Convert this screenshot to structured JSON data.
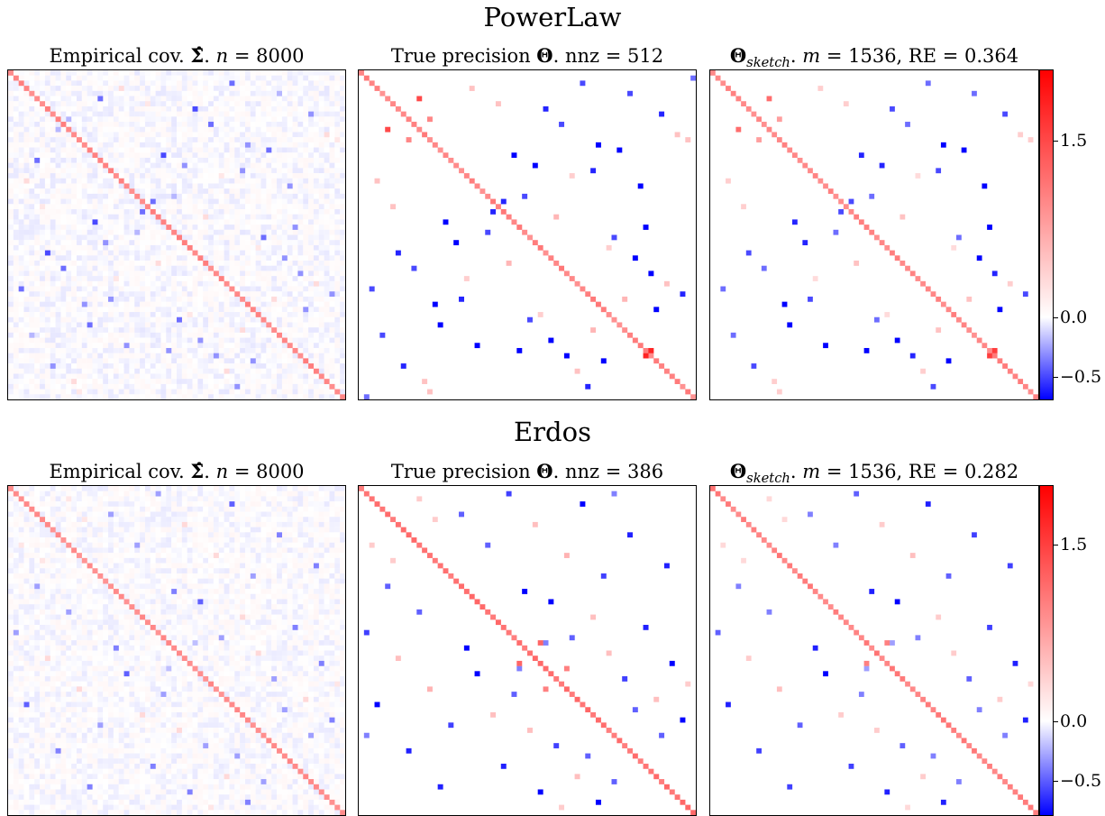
{
  "rows": [
    {
      "title": "PowerLaw",
      "panels": [
        {
          "t1": "Empirical cov. ",
          "sym": "Σ̂",
          "t2": ". ",
          "var": "n",
          "t3": " = 8000"
        },
        {
          "t1": "True precision ",
          "sym": "Θ",
          "t2": ". nnz = 512"
        },
        {
          "sym": "Θ",
          "sub": "sketch",
          "t2": ". ",
          "var": "m",
          "t3": " = 1536, RE = 0.364"
        }
      ],
      "colorbar": {
        "ticks": [
          "1.5",
          "0.0",
          "−0.5"
        ],
        "tick_values": [
          1.5,
          0.0,
          -0.5
        ],
        "vmin": -0.7,
        "vmax": 2.1
      }
    },
    {
      "title": "Erdos",
      "panels": [
        {
          "t1": "Empirical cov. ",
          "sym": "Σ̂",
          "t2": ". ",
          "var": "n",
          "t3": " = 8000"
        },
        {
          "t1": "True precision ",
          "sym": "Θ",
          "t2": ". nnz = 386"
        },
        {
          "sym": "Θ",
          "sub": "sketch",
          "t2": ". ",
          "var": "m",
          "t3": " = 1536, RE = 0.282"
        }
      ],
      "colorbar": {
        "ticks": [
          "1.5",
          "0.0",
          "−0.5"
        ],
        "tick_values": [
          1.5,
          0.0,
          -0.5
        ],
        "vmin": -0.8,
        "vmax": 2.0
      }
    }
  ],
  "chart_data": {
    "type": "heatmap",
    "matrix_size": 64,
    "colormap": "bwr",
    "colors": {
      "neg": "#0000ff",
      "zero": "#ffffff",
      "pos": "#ff0000"
    },
    "matrices": [
      {
        "diag": 1.0,
        "diag_jitter": 0.08,
        "entries": [
          [
            2,
            42,
            -0.4
          ],
          [
            3,
            21,
            0.3
          ],
          [
            5,
            17,
            -0.4
          ],
          [
            7,
            35,
            -0.5
          ],
          [
            8,
            57,
            -0.3
          ],
          [
            9,
            11,
            -0.2
          ],
          [
            10,
            38,
            -0.4
          ],
          [
            12,
            60,
            0.3
          ],
          [
            14,
            45,
            -0.3
          ],
          [
            15,
            49,
            -0.4
          ],
          [
            16,
            29,
            -0.5
          ],
          [
            18,
            33,
            -0.3
          ],
          [
            20,
            40,
            0.2
          ],
          [
            22,
            53,
            -0.3
          ],
          [
            24,
            31,
            -0.2
          ],
          [
            25,
            27,
            -0.4
          ],
          [
            28,
            37,
            0.3
          ],
          [
            30,
            54,
            -0.3
          ],
          [
            32,
            48,
            -0.4
          ],
          [
            34,
            47,
            0.2
          ],
          [
            36,
            52,
            -0.3
          ],
          [
            39,
            55,
            -0.3
          ],
          [
            41,
            58,
            0.3
          ],
          [
            43,
            61,
            -0.3
          ],
          [
            44,
            50,
            0.3
          ],
          [
            46,
            56,
            -0.3
          ],
          [
            13,
            62,
            0.2
          ],
          [
            4,
            51,
            -0.2
          ],
          [
            6,
            26,
            0.2
          ],
          [
            19,
            44,
            -0.3
          ]
        ]
      },
      {
        "diag": 1.0,
        "diag_jitter": 0.12,
        "entries": [
          [
            2,
            42,
            -0.5
          ],
          [
            3,
            21,
            0.5
          ],
          [
            5,
            11,
            1.5
          ],
          [
            7,
            35,
            -0.6
          ],
          [
            8,
            57,
            -0.6
          ],
          [
            9,
            13,
            1.0
          ],
          [
            10,
            38,
            -0.5
          ],
          [
            12,
            60,
            0.5
          ],
          [
            14,
            45,
            -0.8
          ],
          [
            15,
            49,
            -0.9
          ],
          [
            16,
            29,
            -0.7
          ],
          [
            18,
            33,
            -0.7
          ],
          [
            20,
            40,
            0.4
          ],
          [
            22,
            53,
            -0.8
          ],
          [
            24,
            31,
            -0.5
          ],
          [
            25,
            27,
            -0.6
          ],
          [
            28,
            37,
            0.6
          ],
          [
            30,
            54,
            -0.9
          ],
          [
            32,
            48,
            -0.5
          ],
          [
            34,
            47,
            0.4
          ],
          [
            36,
            52,
            -0.8
          ],
          [
            39,
            55,
            -0.7
          ],
          [
            41,
            58,
            0.5
          ],
          [
            43,
            61,
            -0.6
          ],
          [
            44,
            50,
            0.6
          ],
          [
            46,
            56,
            -0.9
          ],
          [
            13,
            62,
            0.5
          ],
          [
            4,
            51,
            -0.5
          ],
          [
            6,
            26,
            0.5
          ],
          [
            19,
            44,
            -0.6
          ],
          [
            54,
            55,
            1.8
          ],
          [
            1,
            63,
            -0.4
          ]
        ]
      },
      {
        "diag": 1.0,
        "diag_jitter": 0.1,
        "entries": [
          [
            2,
            42,
            -0.4
          ],
          [
            3,
            21,
            0.4
          ],
          [
            5,
            11,
            1.2
          ],
          [
            7,
            35,
            -0.5
          ],
          [
            8,
            57,
            -0.5
          ],
          [
            9,
            13,
            0.8
          ],
          [
            10,
            38,
            -0.4
          ],
          [
            12,
            60,
            0.4
          ],
          [
            14,
            45,
            -0.7
          ],
          [
            15,
            49,
            -0.8
          ],
          [
            16,
            29,
            -0.6
          ],
          [
            18,
            33,
            -0.6
          ],
          [
            20,
            40,
            0.3
          ],
          [
            22,
            53,
            -0.7
          ],
          [
            24,
            31,
            -0.4
          ],
          [
            25,
            27,
            -0.5
          ],
          [
            28,
            37,
            0.5
          ],
          [
            30,
            54,
            -0.8
          ],
          [
            32,
            48,
            -0.4
          ],
          [
            34,
            47,
            0.3
          ],
          [
            36,
            52,
            -0.7
          ],
          [
            39,
            55,
            -0.6
          ],
          [
            41,
            58,
            0.4
          ],
          [
            43,
            61,
            -0.5
          ],
          [
            44,
            50,
            0.5
          ],
          [
            46,
            56,
            -0.8
          ],
          [
            13,
            62,
            0.4
          ],
          [
            4,
            51,
            -0.4
          ],
          [
            6,
            26,
            0.4
          ],
          [
            19,
            44,
            -0.5
          ],
          [
            54,
            55,
            1.6
          ]
        ]
      },
      {
        "diag": 0.9,
        "diag_jitter": 0.06,
        "entries": [
          [
            1,
            28,
            -0.3
          ],
          [
            3,
            42,
            -0.5
          ],
          [
            5,
            19,
            -0.3
          ],
          [
            7,
            33,
            0.3
          ],
          [
            9,
            51,
            -0.4
          ],
          [
            11,
            24,
            -0.3
          ],
          [
            13,
            39,
            0.3
          ],
          [
            15,
            58,
            -0.4
          ],
          [
            17,
            46,
            -0.3
          ],
          [
            20,
            31,
            -0.4
          ],
          [
            22,
            36,
            -0.5
          ],
          [
            25,
            44,
            0.3
          ],
          [
            27,
            54,
            -0.4
          ],
          [
            29,
            40,
            -0.3
          ],
          [
            32,
            47,
            0.3
          ],
          [
            34,
            59,
            -0.4
          ],
          [
            37,
            50,
            -0.3
          ],
          [
            41,
            56,
            0.3
          ],
          [
            43,
            52,
            -0.3
          ],
          [
            45,
            61,
            -0.4
          ],
          [
            48,
            57,
            -0.3
          ],
          [
            2,
            11,
            0.2
          ],
          [
            6,
            14,
            0.2
          ],
          [
            30,
            35,
            -0.2
          ],
          [
            38,
            62,
            0.2
          ]
        ]
      },
      {
        "diag": 1.1,
        "diag_jitter": 0.1,
        "entries": [
          [
            1,
            28,
            -0.6
          ],
          [
            3,
            42,
            -0.8
          ],
          [
            5,
            19,
            -0.5
          ],
          [
            7,
            33,
            0.5
          ],
          [
            9,
            51,
            -0.7
          ],
          [
            11,
            24,
            -0.5
          ],
          [
            13,
            39,
            0.6
          ],
          [
            15,
            58,
            -0.7
          ],
          [
            17,
            46,
            -0.6
          ],
          [
            20,
            31,
            -0.8
          ],
          [
            22,
            36,
            -0.9
          ],
          [
            25,
            44,
            0.5
          ],
          [
            27,
            54,
            -0.7
          ],
          [
            29,
            40,
            -0.5
          ],
          [
            32,
            47,
            0.5
          ],
          [
            34,
            59,
            -0.8
          ],
          [
            37,
            50,
            -0.6
          ],
          [
            41,
            56,
            0.5
          ],
          [
            43,
            52,
            -0.5
          ],
          [
            45,
            61,
            -0.8
          ],
          [
            48,
            57,
            -0.5
          ],
          [
            2,
            11,
            0.4
          ],
          [
            6,
            14,
            0.4
          ],
          [
            30,
            35,
            -0.4
          ],
          [
            38,
            62,
            0.4
          ],
          [
            30,
            34,
            1.2
          ],
          [
            35,
            39,
            1.0
          ],
          [
            1,
            48,
            -0.4
          ]
        ]
      },
      {
        "diag": 1.0,
        "diag_jitter": 0.1,
        "entries": [
          [
            1,
            28,
            -0.5
          ],
          [
            3,
            42,
            -0.7
          ],
          [
            5,
            19,
            -0.4
          ],
          [
            7,
            33,
            0.4
          ],
          [
            9,
            51,
            -0.6
          ],
          [
            11,
            24,
            -0.4
          ],
          [
            13,
            39,
            0.5
          ],
          [
            15,
            58,
            -0.6
          ],
          [
            17,
            46,
            -0.5
          ],
          [
            20,
            31,
            -0.7
          ],
          [
            22,
            36,
            -0.8
          ],
          [
            25,
            44,
            0.4
          ],
          [
            27,
            54,
            -0.6
          ],
          [
            29,
            40,
            -0.4
          ],
          [
            32,
            47,
            0.4
          ],
          [
            34,
            59,
            -0.7
          ],
          [
            37,
            50,
            -0.5
          ],
          [
            41,
            56,
            0.4
          ],
          [
            43,
            52,
            -0.4
          ],
          [
            45,
            61,
            -0.7
          ],
          [
            48,
            57,
            -0.4
          ],
          [
            2,
            11,
            0.3
          ],
          [
            6,
            14,
            0.3
          ],
          [
            30,
            35,
            -0.3
          ],
          [
            38,
            62,
            0.3
          ],
          [
            30,
            34,
            1.0
          ]
        ]
      }
    ]
  }
}
